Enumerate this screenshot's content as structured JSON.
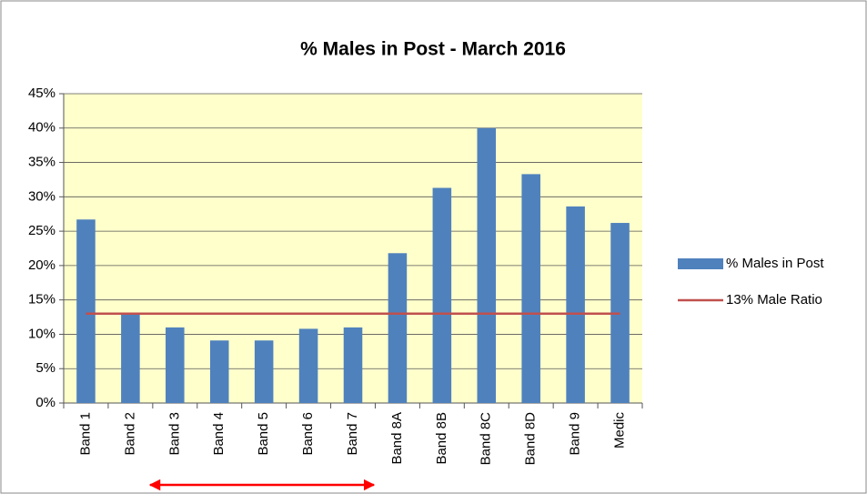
{
  "chart_data": {
    "type": "bar",
    "title": "% Males in Post - March 2016",
    "categories": [
      "Band 1",
      "Band 2",
      "Band 3",
      "Band 4",
      "Band 5",
      "Band 6",
      "Band 7",
      "Band 8A",
      "Band 8B",
      "Band 8C",
      "Band 8D",
      "Band 9",
      "Medic"
    ],
    "series": [
      {
        "name": "% Males in Post",
        "type": "bar",
        "color": "#4f81bd",
        "values": [
          26.7,
          13,
          11,
          9.1,
          9.1,
          10.8,
          11,
          21.8,
          31.3,
          40,
          33.3,
          28.6,
          26.2
        ]
      },
      {
        "name": "13% Male Ratio",
        "type": "line",
        "color": "#c0504d",
        "values": [
          13,
          13,
          13,
          13,
          13,
          13,
          13,
          13,
          13,
          13,
          13,
          13,
          13
        ]
      }
    ],
    "ylim": [
      0,
      45
    ],
    "yticks": [
      {
        "value": 0,
        "label": "0%"
      },
      {
        "value": 5,
        "label": "5%"
      },
      {
        "value": 10,
        "label": "10%"
      },
      {
        "value": 15,
        "label": "15%"
      },
      {
        "value": 20,
        "label": "20%"
      },
      {
        "value": 25,
        "label": "25%"
      },
      {
        "value": 30,
        "label": "30%"
      },
      {
        "value": 35,
        "label": "35%"
      },
      {
        "value": 40,
        "label": "40%"
      },
      {
        "value": 45,
        "label": "45%"
      }
    ],
    "grid": true,
    "legend": "right",
    "plot_background": "#ffffcc"
  }
}
